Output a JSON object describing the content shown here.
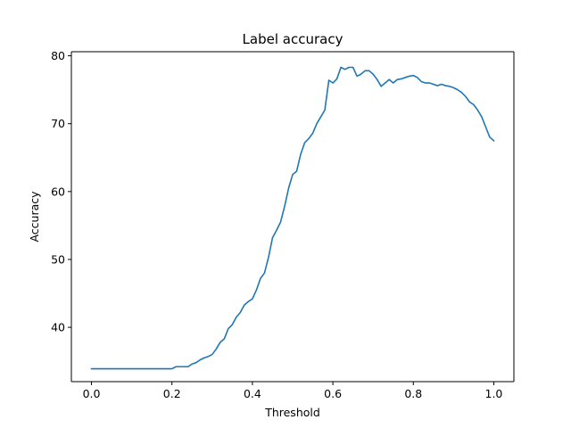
{
  "chart_data": {
    "type": "line",
    "title": "Label accuracy",
    "xlabel": "Threshold",
    "ylabel": "Accuracy",
    "xlim": [
      -0.05,
      1.05
    ],
    "ylim": [
      32.0,
      80.6
    ],
    "xticks": [
      0.0,
      0.2,
      0.4,
      0.6,
      0.8,
      1.0
    ],
    "xtick_labels": [
      "0.0",
      "0.2",
      "0.4",
      "0.6",
      "0.8",
      "1.0"
    ],
    "yticks": [
      40,
      50,
      60,
      70,
      80
    ],
    "ytick_labels": [
      "40",
      "50",
      "60",
      "70",
      "80"
    ],
    "grid": false,
    "line_color": "#1f77b4",
    "series": [
      {
        "x": [
          0.0,
          0.05,
          0.1,
          0.15,
          0.2,
          0.21,
          0.24,
          0.25,
          0.26,
          0.27,
          0.28,
          0.29,
          0.3,
          0.31,
          0.32,
          0.33,
          0.34,
          0.35,
          0.36,
          0.37,
          0.38,
          0.39,
          0.4,
          0.41,
          0.42,
          0.43,
          0.44,
          0.45,
          0.46,
          0.47,
          0.48,
          0.49,
          0.5,
          0.51,
          0.52,
          0.53,
          0.54,
          0.55,
          0.56,
          0.57,
          0.58,
          0.59,
          0.6,
          0.61,
          0.62,
          0.63,
          0.64,
          0.65,
          0.66,
          0.67,
          0.68,
          0.69,
          0.7,
          0.71,
          0.72,
          0.73,
          0.74,
          0.75,
          0.76,
          0.77,
          0.78,
          0.79,
          0.8,
          0.81,
          0.82,
          0.83,
          0.84,
          0.85,
          0.86,
          0.87,
          0.88,
          0.89,
          0.9,
          0.91,
          0.92,
          0.93,
          0.94,
          0.95,
          0.96,
          0.97,
          0.98,
          0.99,
          1.0
        ],
        "y": [
          33.9,
          33.9,
          33.9,
          33.9,
          33.9,
          34.2,
          34.2,
          34.6,
          34.8,
          35.2,
          35.5,
          35.7,
          36.0,
          36.8,
          37.8,
          38.3,
          39.8,
          40.4,
          41.5,
          42.2,
          43.3,
          43.8,
          44.2,
          45.5,
          47.2,
          48.0,
          50.3,
          53.2,
          54.3,
          55.5,
          57.8,
          60.5,
          62.5,
          63.0,
          65.5,
          67.2,
          67.8,
          68.6,
          70.0,
          71.0,
          72.0,
          76.4,
          76.0,
          76.6,
          78.3,
          78.0,
          78.3,
          78.3,
          77.0,
          77.3,
          77.8,
          77.8,
          77.3,
          76.5,
          75.5,
          76.0,
          76.5,
          76.0,
          76.5,
          76.6,
          76.8,
          77.0,
          77.1,
          76.8,
          76.2,
          76.0,
          76.0,
          75.8,
          75.6,
          75.8,
          75.6,
          75.5,
          75.3,
          75.0,
          74.6,
          74.0,
          73.2,
          72.8,
          72.0,
          71.0,
          69.5,
          68.0,
          67.5
        ]
      }
    ]
  }
}
